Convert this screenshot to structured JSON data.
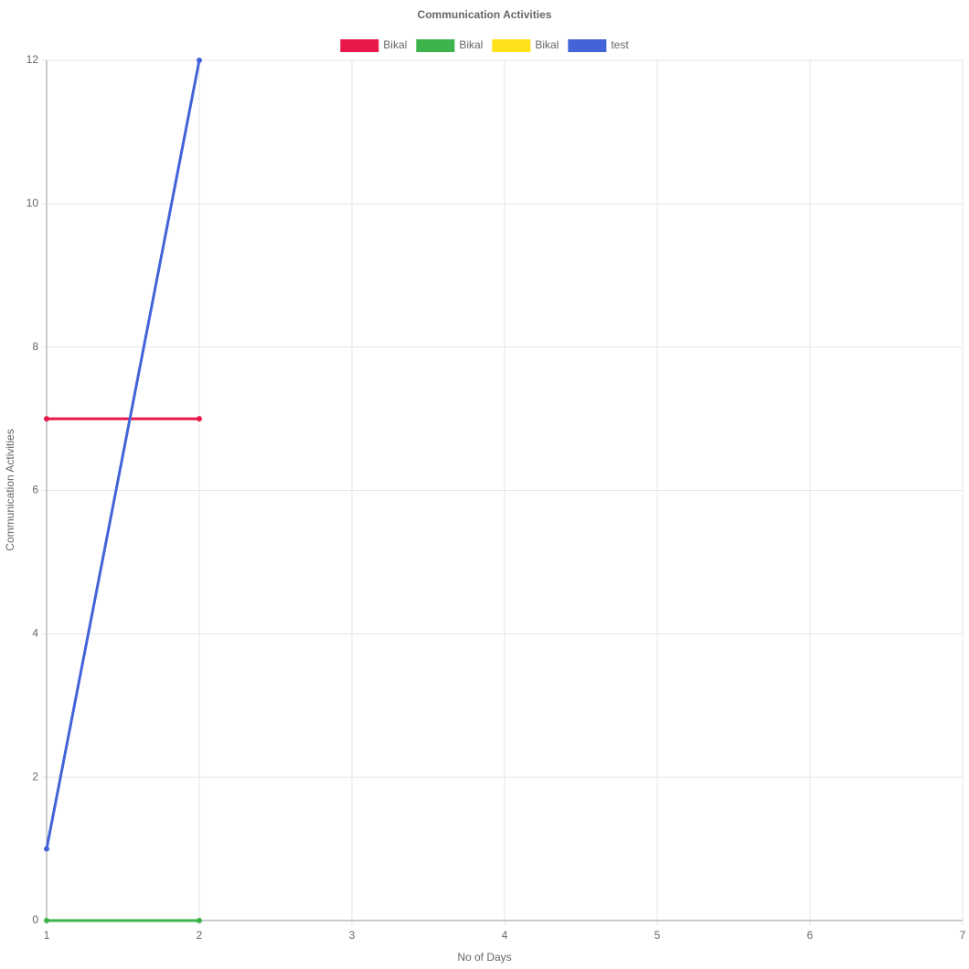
{
  "chart_data": {
    "type": "line",
    "title": "Communication Activities",
    "x_label": "No of Days",
    "y_label": "Communication Activities",
    "x": [
      1,
      2,
      3,
      4,
      5,
      6,
      7
    ],
    "series": [
      {
        "name": "Bikal",
        "color": "#e8194a",
        "values": [
          7,
          7,
          null,
          null,
          null,
          null,
          null
        ]
      },
      {
        "name": "Bikal",
        "color": "#3cb44b",
        "values": [
          0,
          0,
          null,
          null,
          null,
          null,
          null
        ]
      },
      {
        "name": "Bikal",
        "color": "#ffe119",
        "values": [
          null,
          null,
          null,
          null,
          null,
          null,
          null
        ]
      },
      {
        "name": "test",
        "color": "#4363d8",
        "values": [
          1,
          12,
          null,
          null,
          null,
          null,
          null
        ]
      }
    ],
    "xlim": [
      1,
      7
    ],
    "xticks": [
      1,
      2,
      3,
      4,
      5,
      6,
      7
    ],
    "ylim": [
      0,
      12
    ],
    "yticks": [
      0,
      2,
      4,
      6,
      8,
      10,
      12
    ],
    "grid": true,
    "legend": "top"
  }
}
